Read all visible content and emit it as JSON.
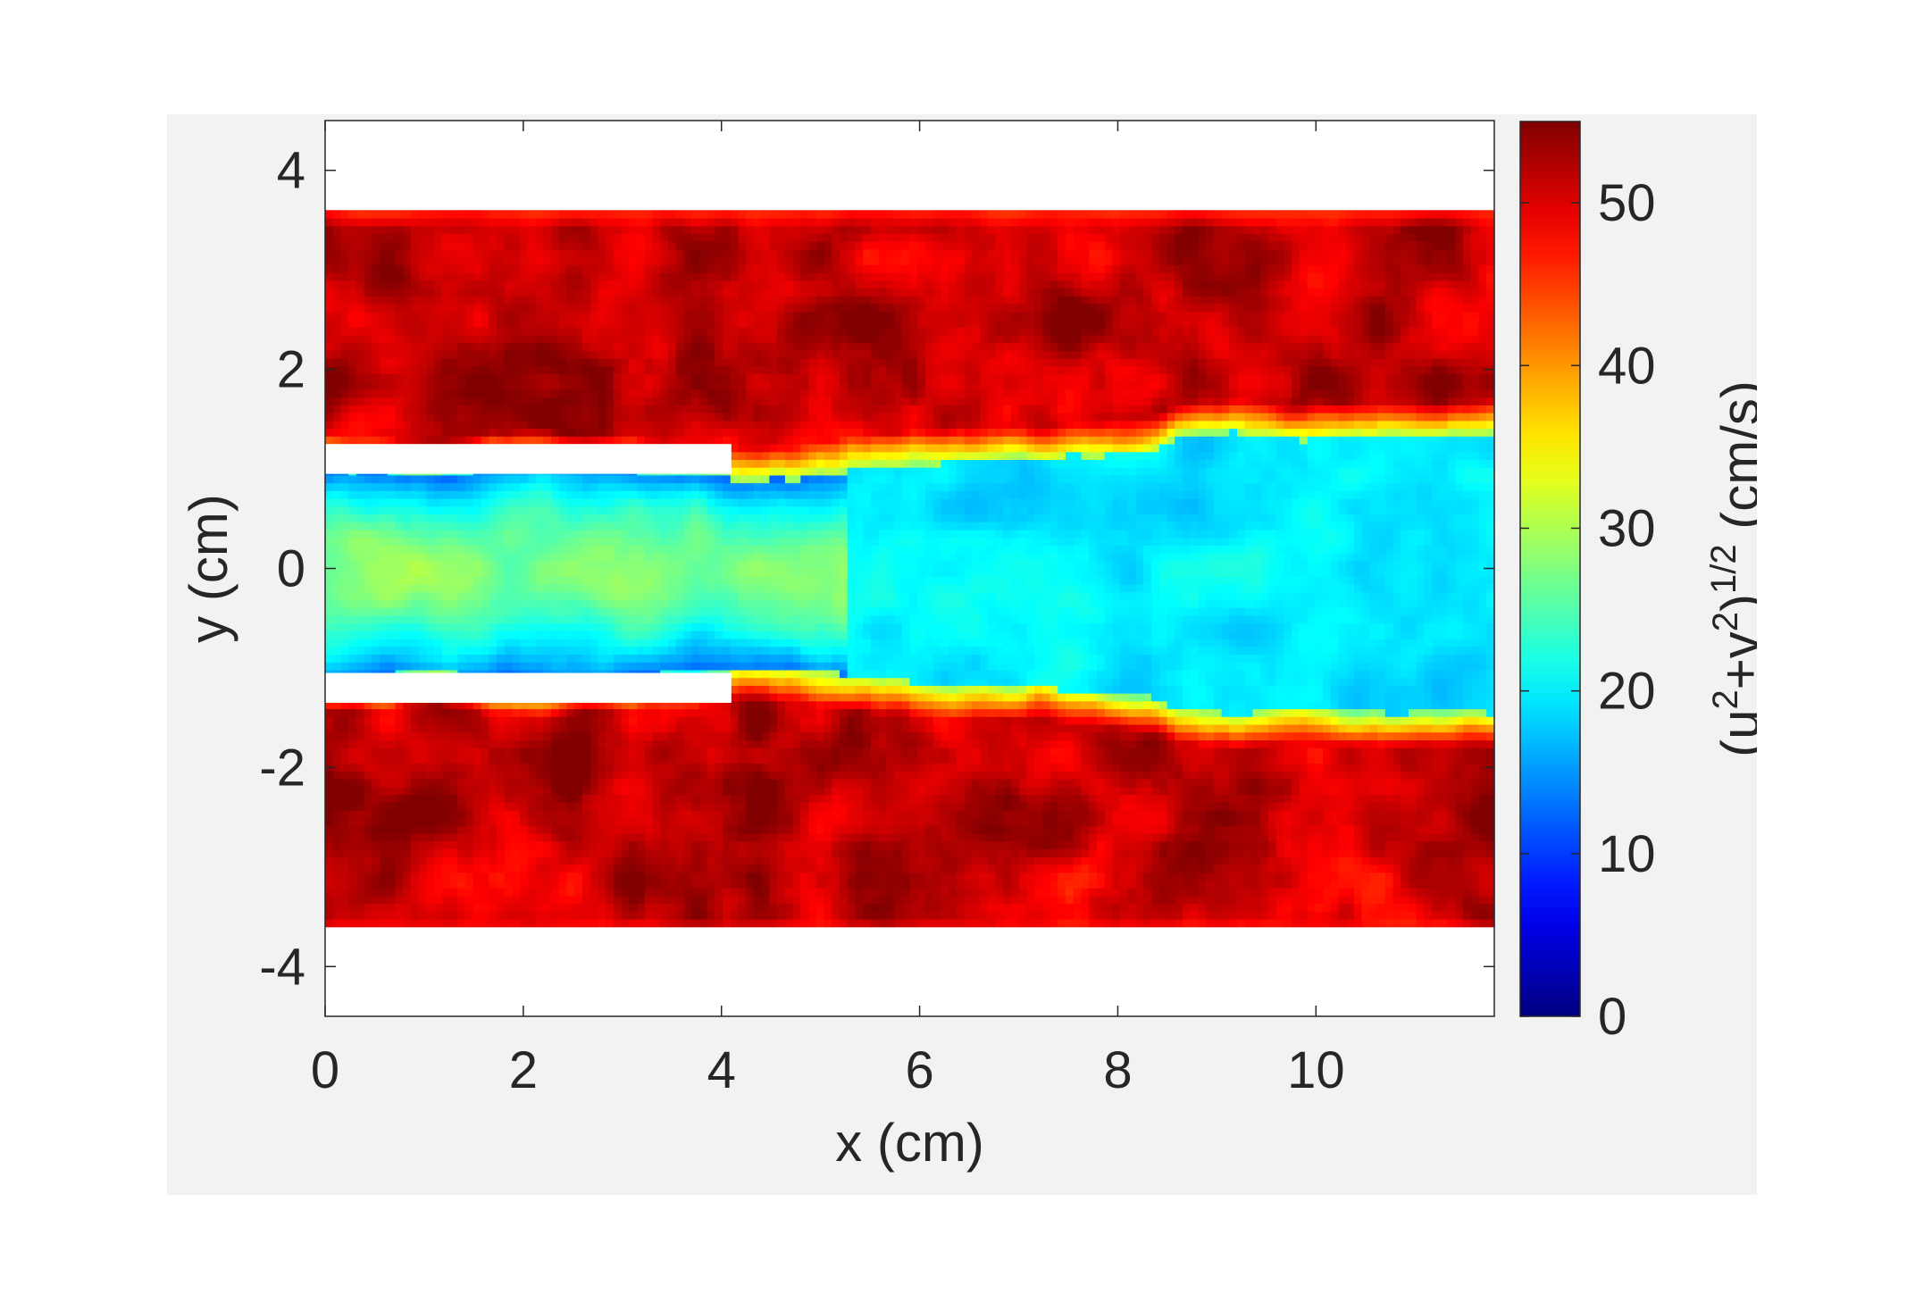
{
  "chart_data": {
    "type": "heatmap",
    "title": "",
    "xlabel": "x (cm)",
    "ylabel": "y (cm)",
    "colorbar_label": "(u²+v²)¹ᐟ² (cm/s)",
    "colorbar_label_parts": {
      "base": "(u",
      "exp1": "2",
      "mid": "+v",
      "exp2": "2",
      "close": ")",
      "exp3": "1/2",
      "unit": " (cm/s)"
    },
    "colormap": "jet",
    "xlim": [
      0,
      11.8
    ],
    "ylim": [
      -4.5,
      4.5
    ],
    "clim": [
      0,
      55
    ],
    "x_ticks": [
      0,
      2,
      4,
      6,
      8,
      10
    ],
    "x_tick_labels": [
      "0",
      "2",
      "4",
      "6",
      "8",
      "10"
    ],
    "y_ticks": [
      4,
      2,
      0,
      -2,
      -4
    ],
    "y_tick_labels": [
      "4",
      "2",
      "0",
      "-2",
      "-4"
    ],
    "colorbar_ticks": [
      0,
      10,
      20,
      30,
      40,
      50
    ],
    "colorbar_tick_labels": [
      "0",
      "10",
      "20",
      "30",
      "40",
      "50"
    ],
    "grid": false,
    "data_extent_y": [
      -3.6,
      3.6
    ],
    "nozzle_walls": [
      {
        "x_start": 0,
        "x_end": 4.1,
        "y_bottom": 0.95,
        "y_top": 1.25
      },
      {
        "x_start": 0,
        "x_end": 4.1,
        "y_bottom": -1.35,
        "y_top": -1.05
      }
    ],
    "field_description_values": {
      "outer_coflow_speed": 52,
      "jet_core_speed_near_nozzle": 28,
      "jet_edge_speed_near_nozzle": 10,
      "jet_speed_downstream": 20,
      "shear_layer_speed": 35
    }
  }
}
